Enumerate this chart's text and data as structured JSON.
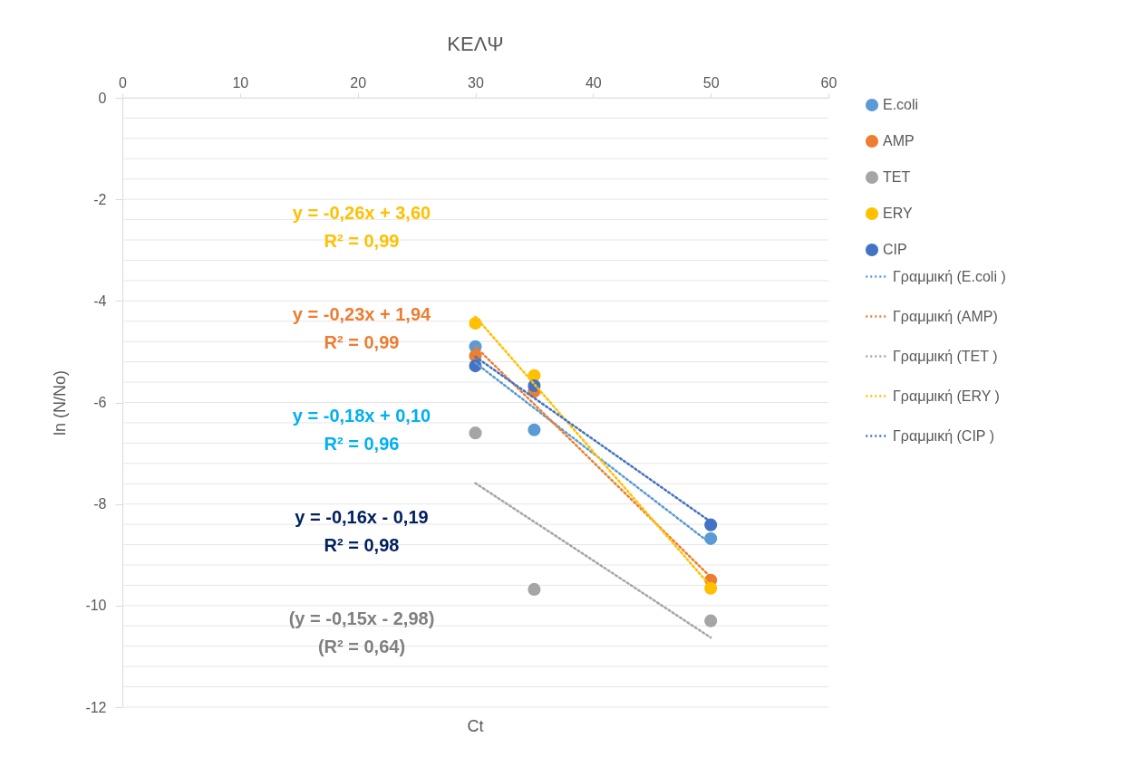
{
  "chart_data": {
    "type": "scatter",
    "title": "ΚΕΛΨ",
    "xlabel": "Ct",
    "ylabel": "ln (N/No)",
    "xlim": [
      0,
      60
    ],
    "xticks": [
      0,
      10,
      20,
      30,
      40,
      50,
      60
    ],
    "ylim": [
      -12,
      0
    ],
    "yticks": [
      -12,
      {
        "value": -11.6,
        "label": null
      },
      {
        "value": -11.2,
        "label": null
      },
      {
        "value": -10.8,
        "label": null
      },
      {
        "value": -10.4,
        "label": null
      },
      -10,
      {
        "value": -9.6,
        "label": null
      },
      {
        "value": -9.2,
        "label": null
      },
      {
        "value": -8.8,
        "label": null
      },
      {
        "value": -8.4,
        "label": null
      },
      -8,
      {
        "value": -7.6,
        "label": null
      },
      {
        "value": -7.2,
        "label": null
      },
      {
        "value": -6.8,
        "label": null
      },
      {
        "value": -6.4,
        "label": null
      },
      -6,
      {
        "value": -5.6,
        "label": null
      },
      {
        "value": -5.2,
        "label": null
      },
      {
        "value": -4.8,
        "label": null
      },
      {
        "value": -4.4,
        "label": null
      },
      -4,
      {
        "value": -3.6,
        "label": null
      },
      {
        "value": -3.2,
        "label": null
      },
      {
        "value": -2.8,
        "label": null
      },
      {
        "value": -2.4,
        "label": null
      },
      -2,
      {
        "value": -1.6,
        "label": null
      },
      {
        "value": -1.2,
        "label": null
      },
      {
        "value": -0.8,
        "label": null
      },
      {
        "value": -0.4,
        "label": null
      },
      0
    ],
    "grid": "y",
    "legend": "right",
    "marker": "circle",
    "series": [
      {
        "name": "E.coli",
        "color": "#5b9bd5",
        "x": [
          30,
          35,
          50
        ],
        "values": [
          -4.9,
          -6.54,
          -8.68
        ]
      },
      {
        "name": "AMP",
        "color": "#ed7d31",
        "x": [
          30,
          35,
          50
        ],
        "values": [
          -5.08,
          -5.78,
          -9.5
        ]
      },
      {
        "name": "TET",
        "color": "#a5a5a5",
        "x": [
          30,
          35,
          50
        ],
        "values": [
          -6.6,
          -9.68,
          -10.3
        ]
      },
      {
        "name": "ERY",
        "color": "#ffc000",
        "x": [
          30,
          35,
          50
        ],
        "values": [
          -4.44,
          -5.47,
          -9.66
        ]
      },
      {
        "name": "CIP",
        "color": "#4472c4",
        "x": [
          30,
          35,
          50
        ],
        "values": [
          -5.28,
          -5.67,
          -8.41
        ]
      },
      {
        "name": "Γραμμική (E.coli )",
        "type": "line",
        "line_style": "dotted",
        "marker": "none",
        "color": "#5b9bd5",
        "x": [
          30,
          50
        ],
        "values": [
          -5.22,
          -8.78
        ]
      },
      {
        "name": "Γραμμική (AMP)",
        "type": "line",
        "line_style": "dotted",
        "marker": "none",
        "color": "#ed7d31",
        "x": [
          30,
          50
        ],
        "values": [
          -4.9,
          -9.44
        ]
      },
      {
        "name": "Γραμμική (TET )",
        "type": "line",
        "line_style": "dotted",
        "marker": "none",
        "color": "#a5a5a5",
        "x": [
          30,
          50
        ],
        "values": [
          -7.59,
          -10.63
        ]
      },
      {
        "name": "Γραμμική (ERY )",
        "type": "line",
        "line_style": "dotted",
        "marker": "none",
        "color": "#ffc000",
        "x": [
          30,
          50
        ],
        "values": [
          -4.31,
          -9.62
        ]
      },
      {
        "name": "Γραμμική (CIP )",
        "type": "line",
        "line_style": "dotted",
        "marker": "none",
        "color": "#4472c4",
        "x": [
          30,
          50
        ],
        "values": [
          -5.1,
          -8.35
        ]
      }
    ],
    "annotations": [
      "y = -0,26x + 3,60",
      "R² = 0,99",
      "y = -0,23x + 1,94",
      "R² = 0,99",
      "y = -0,18x + 0,10",
      "R² = 0,96",
      "y = -0,16x - 0,19",
      "R² = 0,98",
      "(y = -0,15x - 2,98)",
      "(R² = 0,64)"
    ]
  }
}
